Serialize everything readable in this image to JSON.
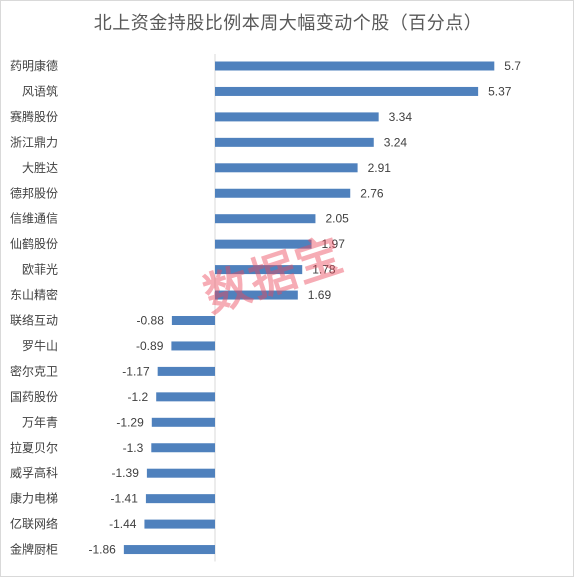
{
  "chart_data": {
    "type": "bar",
    "orientation": "horizontal",
    "title": "北上资金持股比例本周大幅变动个股（百分点）",
    "categories": [
      "药明康德",
      "风语筑",
      "赛腾股份",
      "浙江鼎力",
      "大胜达",
      "德邦股份",
      "信维通信",
      "仙鹤股份",
      "欧菲光",
      "东山精密",
      "联络互动",
      "罗牛山",
      "密尔克卫",
      "国药股份",
      "万年青",
      "拉夏贝尔",
      "威孚高科",
      "康力电梯",
      "亿联网络",
      "金牌厨柜"
    ],
    "value_labels": [
      "5.7",
      "5.37",
      "3.34",
      "3.24",
      "2.91",
      "2.76",
      "2.05",
      "1.97",
      "1.78",
      "1.69",
      "-0.88",
      "-0.89",
      "-1.17",
      "-1.2",
      "-1.29",
      "-1.3",
      "-1.39",
      "-1.41",
      "-1.44",
      "-1.86"
    ],
    "values": [
      5.7,
      5.37,
      3.34,
      3.24,
      2.91,
      2.76,
      2.05,
      1.97,
      1.78,
      1.69,
      -0.88,
      -0.89,
      -1.17,
      -1.2,
      -1.29,
      -1.3,
      -1.39,
      -1.41,
      -1.44,
      -1.86
    ],
    "bar_color": "#4f81bd",
    "xlim": [
      -1.86,
      5.7
    ],
    "grid": false,
    "legend": "none"
  },
  "watermark": "数据宝"
}
